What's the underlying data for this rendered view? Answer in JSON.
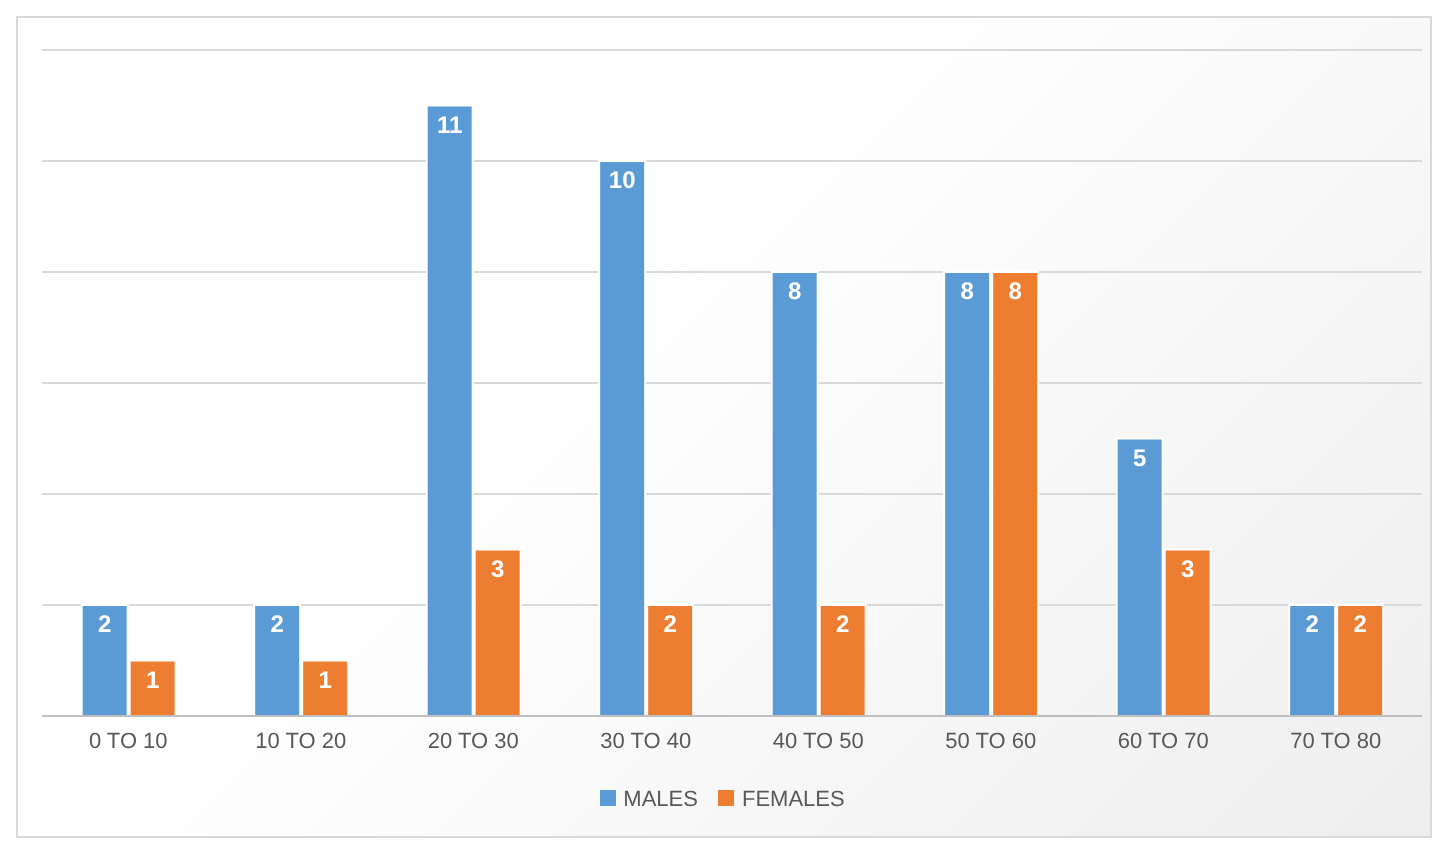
{
  "chart_data": {
    "type": "bar",
    "categories": [
      "0 TO 10",
      "10 TO 20",
      "20 TO 30",
      "30 TO 40",
      "40 TO 50",
      "50 TO 60",
      "60 TO 70",
      "70 TO 80"
    ],
    "series": [
      {
        "name": "MALES",
        "color": "#5b9bd5",
        "values": [
          2,
          2,
          11,
          10,
          8,
          8,
          5,
          2
        ]
      },
      {
        "name": "FEMALES",
        "color": "#ed7d31",
        "values": [
          1,
          1,
          3,
          2,
          2,
          8,
          3,
          2
        ]
      }
    ],
    "ylim": [
      0,
      12
    ],
    "yticks": [
      {
        "value": 0,
        "label": null
      },
      {
        "value": 2,
        "label": null
      },
      {
        "value": 4,
        "label": null
      },
      {
        "value": 6,
        "label": null
      },
      {
        "value": 8,
        "label": null
      },
      {
        "value": 10,
        "label": null
      },
      {
        "value": 12,
        "label": null
      }
    ],
    "tick_labels": "x",
    "grid": "y",
    "legend": "bottom",
    "data_labels": true
  }
}
